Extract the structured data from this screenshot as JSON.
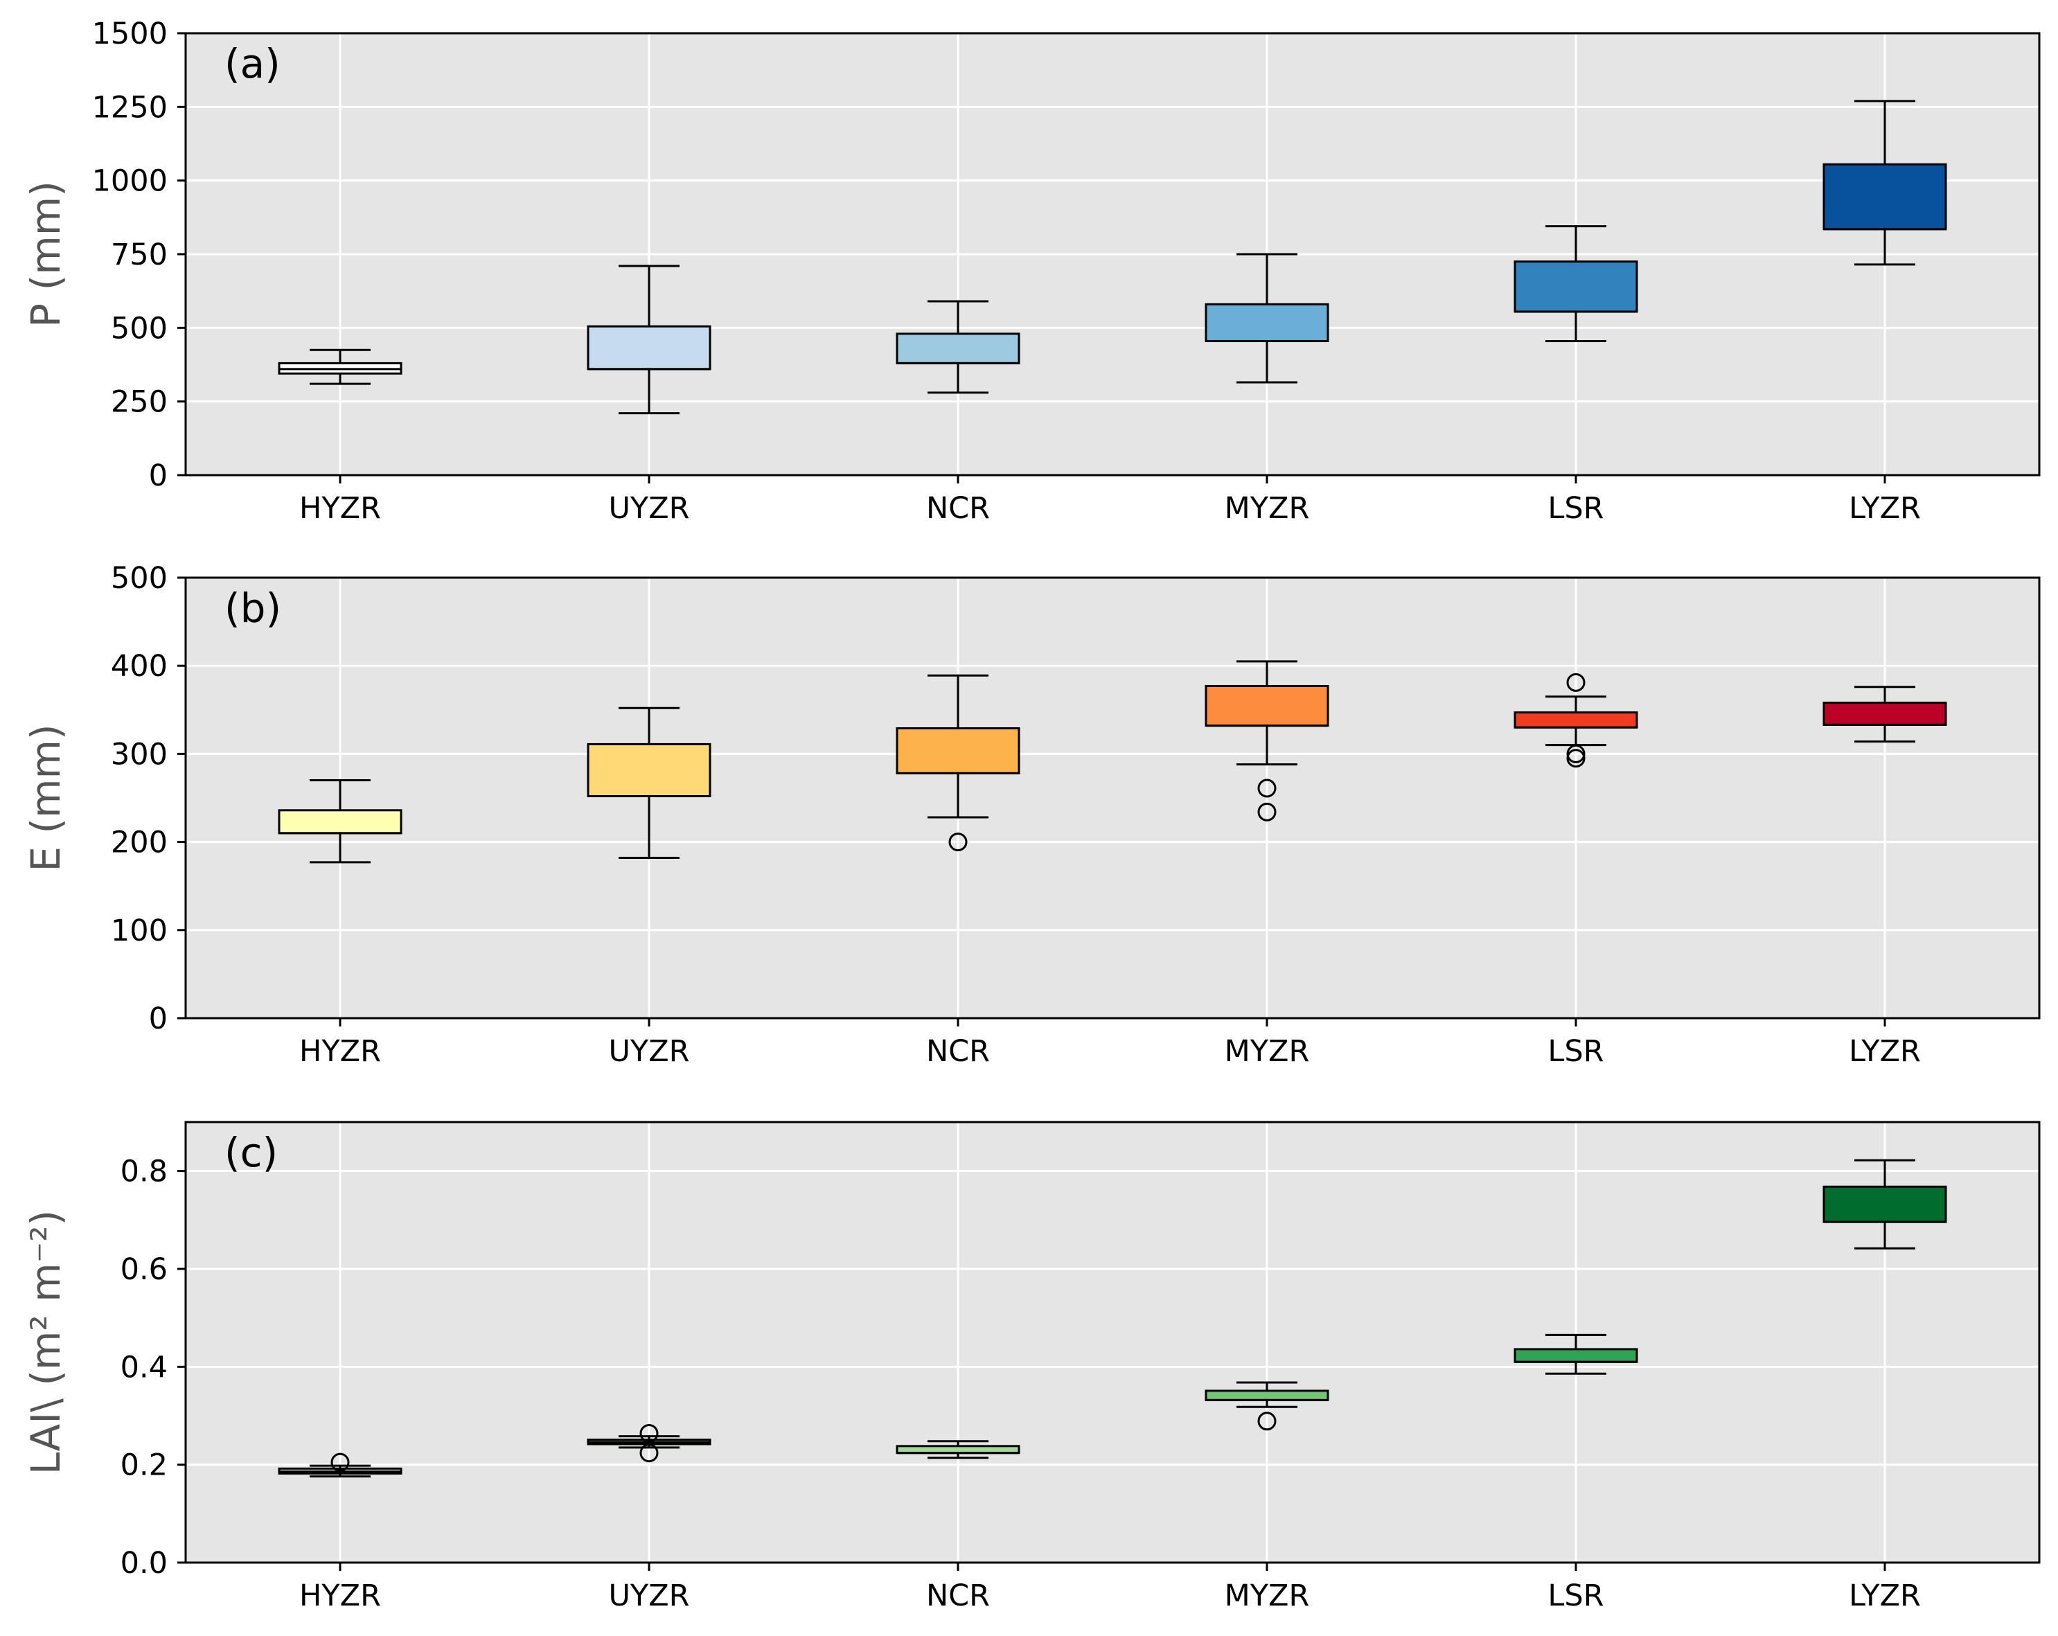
{
  "chart_data": [
    {
      "type": "box",
      "panel_label": "(a)",
      "ylabel": "P (mm)",
      "ylim": [
        0,
        1500
      ],
      "yticks": [
        0,
        250,
        500,
        750,
        1000,
        1250,
        1500
      ],
      "ytick_labels": [
        "0",
        "250",
        "500",
        "750",
        "1000",
        "1250",
        "1500"
      ],
      "categories": [
        "HYZR",
        "UYZR",
        "NCR",
        "MYZR",
        "LSR",
        "LYZR"
      ],
      "grid": true,
      "boxes": [
        {
          "category": "HYZR",
          "whisker_low": 310,
          "q1": 345,
          "median": 360,
          "q3": 380,
          "whisker_high": 425,
          "outliers": [],
          "color": "#ffffff"
        },
        {
          "category": "UYZR",
          "whisker_low": 210,
          "q1": 360,
          "median": 360,
          "q3": 505,
          "whisker_high": 710,
          "outliers": [],
          "color": "#c6dbef"
        },
        {
          "category": "NCR",
          "whisker_low": 280,
          "q1": 380,
          "median": 380,
          "q3": 480,
          "whisker_high": 590,
          "outliers": [],
          "color": "#9ecae1"
        },
        {
          "category": "MYZR",
          "whisker_low": 315,
          "q1": 455,
          "median": 455,
          "q3": 580,
          "whisker_high": 750,
          "outliers": [],
          "color": "#6baed6"
        },
        {
          "category": "LSR",
          "whisker_low": 455,
          "q1": 555,
          "median": 555,
          "q3": 725,
          "whisker_high": 845,
          "outliers": [],
          "color": "#3182bd"
        },
        {
          "category": "LYZR",
          "whisker_low": 715,
          "q1": 835,
          "median": 835,
          "q3": 1055,
          "whisker_high": 1270,
          "outliers": [],
          "color": "#08519c"
        }
      ]
    },
    {
      "type": "box",
      "panel_label": "(b)",
      "ylabel": "E (mm)",
      "ylim": [
        0,
        500
      ],
      "yticks": [
        0,
        100,
        200,
        300,
        400,
        500
      ],
      "ytick_labels": [
        "0",
        "100",
        "200",
        "300",
        "400",
        "500"
      ],
      "categories": [
        "HYZR",
        "UYZR",
        "NCR",
        "MYZR",
        "LSR",
        "LYZR"
      ],
      "grid": true,
      "boxes": [
        {
          "category": "HYZR",
          "whisker_low": 177,
          "q1": 210,
          "median": 210,
          "q3": 236,
          "whisker_high": 270,
          "outliers": [],
          "color": "#ffffb2"
        },
        {
          "category": "UYZR",
          "whisker_low": 182,
          "q1": 252,
          "median": 252,
          "q3": 311,
          "whisker_high": 352,
          "outliers": [],
          "color": "#fed976"
        },
        {
          "category": "NCR",
          "whisker_low": 228,
          "q1": 278,
          "median": 278,
          "q3": 329,
          "whisker_high": 389,
          "outliers": [
            200
          ],
          "color": "#feb24c"
        },
        {
          "category": "MYZR",
          "whisker_low": 288,
          "q1": 332,
          "median": 332,
          "q3": 377,
          "whisker_high": 405,
          "outliers": [
            261,
            234
          ],
          "color": "#fd8d3c"
        },
        {
          "category": "LSR",
          "whisker_low": 310,
          "q1": 330,
          "median": 330,
          "q3": 347,
          "whisker_high": 365,
          "outliers": [
            381,
            300,
            295
          ],
          "color": "#f03b20"
        },
        {
          "category": "LYZR",
          "whisker_low": 314,
          "q1": 333,
          "median": 333,
          "q3": 358,
          "whisker_high": 376,
          "outliers": [],
          "color": "#bd0026"
        }
      ]
    },
    {
      "type": "box",
      "panel_label": "(c)",
      "ylabel": "LAI\\ (m² m⁻²)",
      "ylim": [
        0,
        0.9
      ],
      "yticks": [
        0,
        0.2,
        0.4,
        0.6,
        0.8
      ],
      "ytick_labels": [
        "0.0",
        "0.2",
        "0.4",
        "0.6",
        "0.8"
      ],
      "categories": [
        "HYZR",
        "UYZR",
        "NCR",
        "MYZR",
        "LSR",
        "LYZR"
      ],
      "grid": true,
      "boxes": [
        {
          "category": "HYZR",
          "whisker_low": 0.176,
          "q1": 0.182,
          "median": 0.186,
          "q3": 0.192,
          "whisker_high": 0.198,
          "outliers": [
            0.205
          ],
          "color": "#edf8e9"
        },
        {
          "category": "UYZR",
          "whisker_low": 0.235,
          "q1": 0.242,
          "median": 0.246,
          "q3": 0.251,
          "whisker_high": 0.258,
          "outliers": [
            0.264,
            0.224
          ],
          "color": "#c7e9c0"
        },
        {
          "category": "NCR",
          "whisker_low": 0.214,
          "q1": 0.224,
          "median": 0.224,
          "q3": 0.238,
          "whisker_high": 0.248,
          "outliers": [],
          "color": "#a1d99b"
        },
        {
          "category": "MYZR",
          "whisker_low": 0.318,
          "q1": 0.332,
          "median": 0.332,
          "q3": 0.351,
          "whisker_high": 0.368,
          "outliers": [
            0.289
          ],
          "color": "#74c476"
        },
        {
          "category": "LSR",
          "whisker_low": 0.386,
          "q1": 0.41,
          "median": 0.41,
          "q3": 0.436,
          "whisker_high": 0.465,
          "outliers": [],
          "color": "#31a354"
        },
        {
          "category": "LYZR",
          "whisker_low": 0.642,
          "q1": 0.696,
          "median": 0.696,
          "q3": 0.768,
          "whisker_high": 0.822,
          "outliers": [],
          "color": "#006d2c"
        }
      ]
    }
  ],
  "style": {
    "panel_background": "#e5e5e5",
    "grid_color": "#ffffff",
    "axis_color": "#000000"
  }
}
